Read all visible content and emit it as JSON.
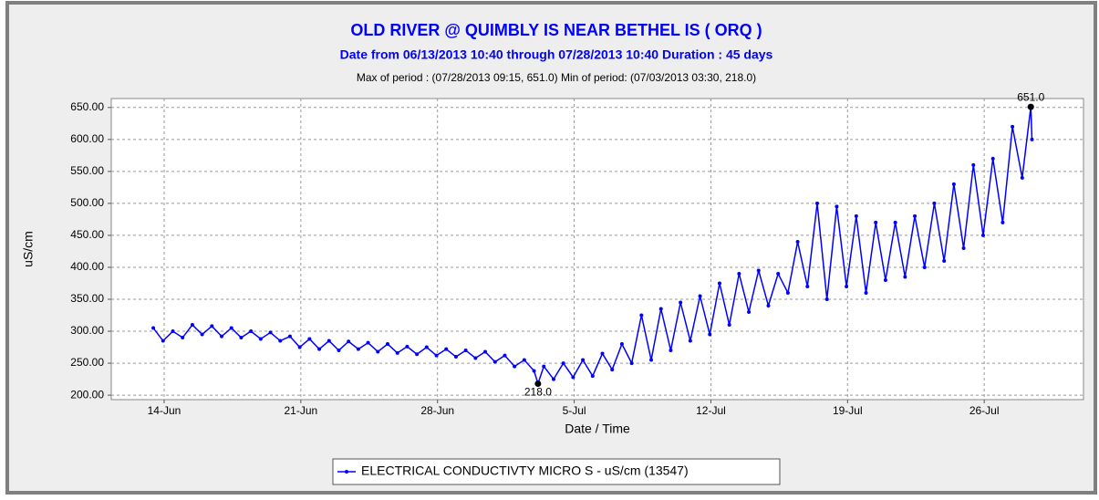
{
  "chart_data": {
    "type": "line",
    "title": "OLD RIVER @ QUIMBLY IS NEAR BETHEL IS ( ORQ )",
    "subtitle": "Date from 06/13/2013 10:40 through 07/28/2013 10:40 Duration : 45 days",
    "stats": "Max of period : (07/28/2013 09:15, 651.0)  Min of period: (07/03/2013 03:30,  218.0)",
    "ylabel": "uS/cm",
    "xlabel": "Date / Time",
    "xlim": [
      "2013-06-11T07:00",
      "2013-07-31T02:00"
    ],
    "xticks": [
      {
        "value": "2013-06-14T00:00",
        "label": "14-Jun"
      },
      {
        "value": "2013-06-21T00:00",
        "label": "21-Jun"
      },
      {
        "value": "2013-06-28T00:00",
        "label": "28-Jun"
      },
      {
        "value": "2013-07-05T00:00",
        "label": "5-Jul"
      },
      {
        "value": "2013-07-12T00:00",
        "label": "12-Jul"
      },
      {
        "value": "2013-07-19T00:00",
        "label": "19-Jul"
      },
      {
        "value": "2013-07-26T00:00",
        "label": "26-Jul"
      }
    ],
    "ylim": [
      193,
      664
    ],
    "yticks": [
      {
        "value": 200,
        "label": "200.00"
      },
      {
        "value": 250,
        "label": "250.00"
      },
      {
        "value": 300,
        "label": "300.00"
      },
      {
        "value": 350,
        "label": "350.00"
      },
      {
        "value": 400,
        "label": "400.00"
      },
      {
        "value": 450,
        "label": "450.00"
      },
      {
        "value": 500,
        "label": "500.00"
      },
      {
        "value": 550,
        "label": "550.00"
      },
      {
        "value": 600,
        "label": "600.00"
      },
      {
        "value": 650,
        "label": "650.00"
      }
    ],
    "grid": true,
    "legend": "bottom",
    "annotations": [
      {
        "text": "651.0",
        "x": "2013-07-28T09:15",
        "y": 651
      },
      {
        "text": "218.0",
        "x": "2013-07-03T03:30",
        "y": 218
      }
    ],
    "x": [
      "2013-06-13T10:40",
      "2013-06-13T22:40",
      "2013-06-14T10:40",
      "2013-06-14T22:40",
      "2013-06-15T10:40",
      "2013-06-15T22:40",
      "2013-06-16T10:40",
      "2013-06-16T22:40",
      "2013-06-17T10:40",
      "2013-06-17T22:40",
      "2013-06-18T10:40",
      "2013-06-18T22:40",
      "2013-06-19T10:40",
      "2013-06-19T22:40",
      "2013-06-20T10:40",
      "2013-06-20T22:40",
      "2013-06-21T10:40",
      "2013-06-21T22:40",
      "2013-06-22T10:40",
      "2013-06-22T22:40",
      "2013-06-23T10:40",
      "2013-06-23T22:40",
      "2013-06-24T10:40",
      "2013-06-24T22:40",
      "2013-06-25T10:40",
      "2013-06-25T22:40",
      "2013-06-26T10:40",
      "2013-06-26T22:40",
      "2013-06-27T10:40",
      "2013-06-27T22:40",
      "2013-06-28T10:40",
      "2013-06-28T22:40",
      "2013-06-29T10:40",
      "2013-06-29T22:40",
      "2013-06-30T10:40",
      "2013-06-30T22:40",
      "2013-07-01T10:40",
      "2013-07-01T22:40",
      "2013-07-02T10:40",
      "2013-07-02T22:40",
      "2013-07-03T03:30",
      "2013-07-03T10:40",
      "2013-07-03T22:40",
      "2013-07-04T10:40",
      "2013-07-04T22:40",
      "2013-07-05T10:40",
      "2013-07-05T22:40",
      "2013-07-06T10:40",
      "2013-07-06T22:40",
      "2013-07-07T10:40",
      "2013-07-07T22:40",
      "2013-07-08T10:40",
      "2013-07-08T22:40",
      "2013-07-09T10:40",
      "2013-07-09T22:40",
      "2013-07-10T10:40",
      "2013-07-10T22:40",
      "2013-07-11T10:40",
      "2013-07-11T22:40",
      "2013-07-12T10:40",
      "2013-07-12T22:40",
      "2013-07-13T10:40",
      "2013-07-13T22:40",
      "2013-07-14T10:40",
      "2013-07-14T22:40",
      "2013-07-15T10:40",
      "2013-07-15T22:40",
      "2013-07-16T10:40",
      "2013-07-16T22:40",
      "2013-07-17T10:40",
      "2013-07-17T22:40",
      "2013-07-18T10:40",
      "2013-07-18T22:40",
      "2013-07-19T10:40",
      "2013-07-19T22:40",
      "2013-07-20T10:40",
      "2013-07-20T22:40",
      "2013-07-21T10:40",
      "2013-07-21T22:40",
      "2013-07-22T10:40",
      "2013-07-22T22:40",
      "2013-07-23T10:40",
      "2013-07-23T22:40",
      "2013-07-24T10:40",
      "2013-07-24T22:40",
      "2013-07-25T10:40",
      "2013-07-25T22:40",
      "2013-07-26T10:40",
      "2013-07-26T22:40",
      "2013-07-27T10:40",
      "2013-07-27T22:40",
      "2013-07-28T09:15",
      "2013-07-28T10:40"
    ],
    "series": [
      {
        "name": "ELECTRICAL CONDUCTIVTY MICRO S - uS/cm (13547)",
        "color": "#0000ff",
        "values": [
          305,
          285,
          300,
          290,
          310,
          295,
          308,
          292,
          305,
          290,
          300,
          288,
          298,
          285,
          292,
          275,
          288,
          272,
          285,
          270,
          284,
          272,
          282,
          268,
          280,
          266,
          276,
          264,
          275,
          262,
          272,
          260,
          270,
          258,
          268,
          252,
          262,
          245,
          255,
          238,
          218,
          245,
          225,
          250,
          228,
          255,
          230,
          265,
          240,
          280,
          250,
          325,
          255,
          335,
          270,
          345,
          285,
          355,
          295,
          375,
          310,
          390,
          330,
          395,
          340,
          390,
          360,
          440,
          370,
          500,
          350,
          495,
          370,
          480,
          360,
          470,
          380,
          470,
          385,
          480,
          400,
          500,
          410,
          530,
          430,
          560,
          450,
          570,
          470,
          620,
          540,
          651,
          600
        ]
      }
    ]
  }
}
